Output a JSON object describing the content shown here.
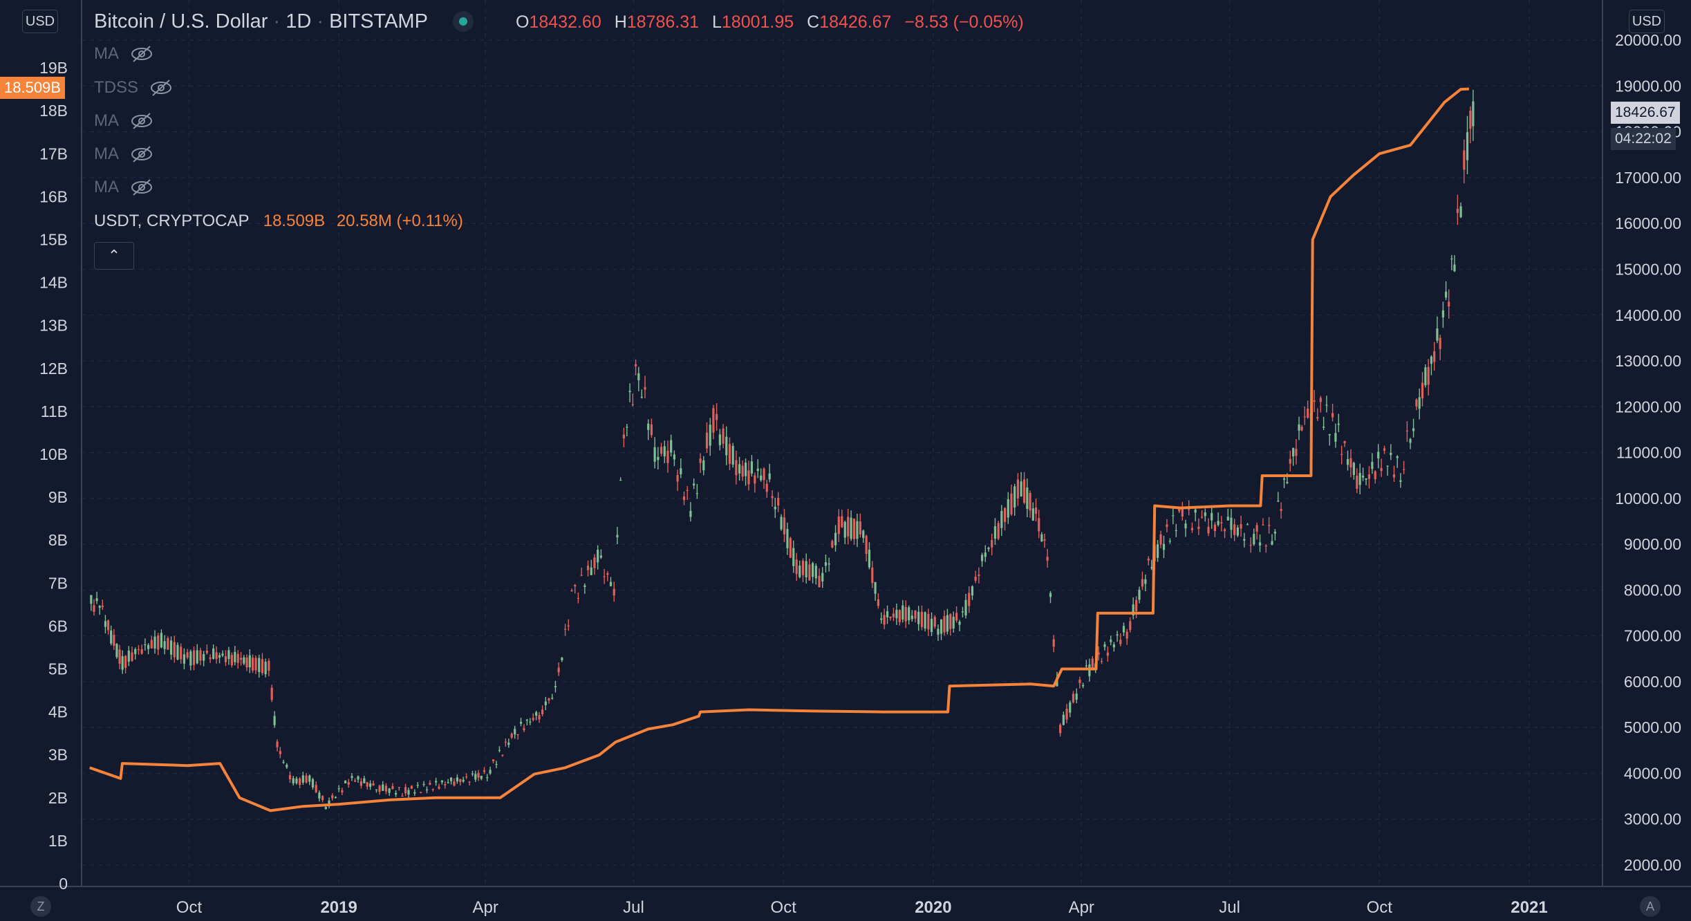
{
  "header": {
    "symbol": "Bitcoin / U.S. Dollar",
    "interval": "1D",
    "exchange": "BITSTAMP",
    "ohlc": {
      "o_label": "O",
      "o": "18432.60",
      "h_label": "H",
      "h": "18786.31",
      "l_label": "L",
      "l": "18001.95",
      "c_label": "C",
      "c": "18426.67",
      "change": "−8.53 (−0.05%)"
    }
  },
  "indicators": [
    {
      "label": "MA"
    },
    {
      "label": "TDSS"
    },
    {
      "label": "MA"
    },
    {
      "label": "MA"
    },
    {
      "label": "MA"
    }
  ],
  "overlay": {
    "symbol": "USDT, CRYPTOCAP",
    "value": "18.509B",
    "change": "20.58M (+0.11%)"
  },
  "left_scale": {
    "currency": "USD",
    "last_value_tag": "18.509B",
    "ticks": [
      "0",
      "1B",
      "2B",
      "3B",
      "4B",
      "5B",
      "6B",
      "7B",
      "8B",
      "9B",
      "10B",
      "11B",
      "12B",
      "13B",
      "14B",
      "15B",
      "16B",
      "17B",
      "18B",
      "19B"
    ]
  },
  "right_scale": {
    "currency": "USD",
    "last_price_tag": "18426.67",
    "countdown": "04:22:02",
    "ticks": [
      "2000.00",
      "3000.00",
      "4000.00",
      "5000.00",
      "6000.00",
      "7000.00",
      "8000.00",
      "9000.00",
      "10000.00",
      "11000.00",
      "12000.00",
      "13000.00",
      "14000.00",
      "15000.00",
      "16000.00",
      "17000.00",
      "18000.00",
      "19000.00",
      "20000.00"
    ]
  },
  "time_axis": {
    "labels": [
      {
        "text": "Oct",
        "bold": false
      },
      {
        "text": "2019",
        "bold": true
      },
      {
        "text": "Apr",
        "bold": false
      },
      {
        "text": "Jul",
        "bold": false
      },
      {
        "text": "Oct",
        "bold": false
      },
      {
        "text": "2020",
        "bold": true
      },
      {
        "text": "Apr",
        "bold": false
      },
      {
        "text": "Jul",
        "bold": false
      },
      {
        "text": "Oct",
        "bold": false
      },
      {
        "text": "2021",
        "bold": true
      }
    ]
  },
  "corners": {
    "left": "Z",
    "right": "A"
  },
  "colors": {
    "background": "#131a2e",
    "up": "#7fbf93",
    "down": "#e0605a",
    "usdt_line": "#f5833a",
    "grid": "#1e2640"
  },
  "chart_data": [
    {
      "type": "line",
      "name": "USDT, CRYPTOCAP",
      "yaxis": "left",
      "ylim": [
        0,
        20
      ],
      "units": "B",
      "x": [
        "2018-08-01",
        "2018-08-20",
        "2018-08-21",
        "2018-09-30",
        "2018-10-20",
        "2018-11-01",
        "2018-11-20",
        "2018-12-10",
        "2019-01-01",
        "2019-02-01",
        "2019-03-01",
        "2019-03-25",
        "2019-04-10",
        "2019-05-01",
        "2019-05-20",
        "2019-06-10",
        "2019-06-20",
        "2019-07-10",
        "2019-07-25",
        "2019-08-10",
        "2019-08-11",
        "2019-09-10",
        "2019-10-20",
        "2019-12-01",
        "2020-01-10",
        "2020-01-11",
        "2020-03-01",
        "2020-03-15",
        "2020-03-20",
        "2020-04-10",
        "2020-04-11",
        "2020-05-15",
        "2020-05-16",
        "2020-06-01",
        "2020-07-01",
        "2020-07-20",
        "2020-07-21",
        "2020-08-20",
        "2020-08-21",
        "2020-09-01",
        "2020-09-15",
        "2020-10-01",
        "2020-10-20",
        "2020-11-10",
        "2020-11-20",
        "2020-11-25"
      ],
      "y": [
        2.7,
        2.45,
        2.8,
        2.75,
        2.8,
        2.0,
        1.7,
        1.8,
        1.85,
        1.95,
        2.0,
        2.0,
        2.0,
        2.55,
        2.7,
        3.0,
        3.3,
        3.6,
        3.7,
        3.9,
        4.0,
        4.05,
        4.02,
        4.0,
        4.0,
        4.6,
        4.65,
        4.6,
        5.0,
        5.0,
        6.3,
        6.3,
        8.8,
        8.75,
        8.8,
        8.8,
        9.5,
        9.5,
        15.0,
        16.0,
        16.5,
        17.0,
        17.2,
        18.2,
        18.5,
        18.509
      ]
    },
    {
      "type": "candlestick",
      "name": "Bitcoin / U.S. Dollar",
      "yaxis": "right",
      "ylim": [
        1600,
        20500
      ],
      "x": [
        "2018-08-01",
        "2018-08-08",
        "2018-08-15",
        "2018-08-22",
        "2018-09-01",
        "2018-09-15",
        "2018-10-01",
        "2018-10-15",
        "2018-11-01",
        "2018-11-10",
        "2018-11-20",
        "2018-11-25",
        "2018-12-05",
        "2018-12-15",
        "2018-12-25",
        "2019-01-10",
        "2019-01-25",
        "2019-02-10",
        "2019-02-25",
        "2019-03-10",
        "2019-03-25",
        "2019-04-03",
        "2019-04-20",
        "2019-05-05",
        "2019-05-15",
        "2019-05-25",
        "2019-06-10",
        "2019-06-20",
        "2019-06-26",
        "2019-07-05",
        "2019-07-15",
        "2019-07-25",
        "2019-08-06",
        "2019-08-20",
        "2019-09-05",
        "2019-09-20",
        "2019-09-25",
        "2019-10-10",
        "2019-10-20",
        "2019-10-26",
        "2019-11-05",
        "2019-11-20",
        "2019-12-01",
        "2019-12-18",
        "2020-01-05",
        "2020-01-20",
        "2020-02-01",
        "2020-02-13",
        "2020-02-25",
        "2020-03-05",
        "2020-03-12",
        "2020-03-20",
        "2020-04-05",
        "2020-04-20",
        "2020-04-30",
        "2020-05-15",
        "2020-06-01",
        "2020-06-15",
        "2020-07-01",
        "2020-07-15",
        "2020-07-28",
        "2020-08-10",
        "2020-08-17",
        "2020-08-25",
        "2020-09-05",
        "2020-09-20",
        "2020-10-05",
        "2020-10-15",
        "2020-10-21",
        "2020-11-01",
        "2020-11-10",
        "2020-11-17",
        "2020-11-25"
      ],
      "close": [
        7700,
        7000,
        6400,
        6700,
        6900,
        6500,
        6600,
        6500,
        6400,
        6300,
        4600,
        3800,
        3900,
        3300,
        3900,
        3700,
        3600,
        3700,
        3800,
        3900,
        4000,
        4900,
        5300,
        5800,
        7800,
        8700,
        8000,
        11500,
        12900,
        11000,
        11000,
        9800,
        11700,
        10600,
        10500,
        10200,
        8500,
        8400,
        8200,
        9400,
        9300,
        7400,
        7500,
        7200,
        7400,
        8600,
        9500,
        10300,
        9600,
        8800,
        5000,
        6200,
        6800,
        7100,
        8700,
        9600,
        9500,
        9400,
        9200,
        9200,
        11000,
        11800,
        12000,
        11500,
        10300,
        10900,
        10600,
        11500,
        12800,
        13800,
        15300,
        17800,
        18426.67
      ]
    }
  ]
}
